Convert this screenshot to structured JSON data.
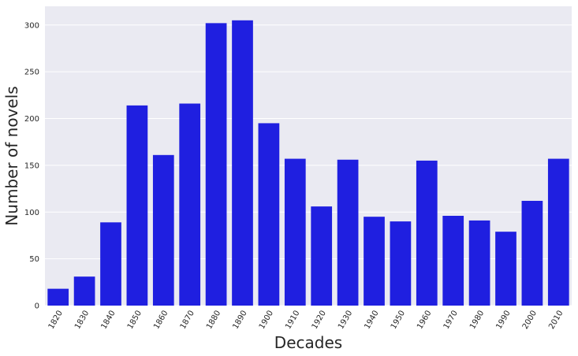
{
  "chart_data": {
    "type": "bar",
    "title": "",
    "xlabel": "Decades",
    "ylabel": "Number of novels",
    "categories": [
      "1820",
      "1830",
      "1840",
      "1850",
      "1860",
      "1870",
      "1880",
      "1890",
      "1900",
      "1910",
      "1920",
      "1930",
      "1940",
      "1950",
      "1960",
      "1970",
      "1980",
      "1990",
      "2000",
      "2010"
    ],
    "values": [
      18,
      31,
      89,
      214,
      161,
      216,
      302,
      305,
      195,
      157,
      106,
      156,
      95,
      90,
      155,
      96,
      91,
      79,
      112,
      157
    ],
    "ylim": [
      0,
      320
    ],
    "yticks": [
      0,
      50,
      100,
      150,
      200,
      250,
      300
    ],
    "grid": true,
    "colors": {
      "bar": "#1f1fe0",
      "plot_background": "#eaeaf2",
      "grid": "#ffffff",
      "text": "#262626"
    }
  }
}
